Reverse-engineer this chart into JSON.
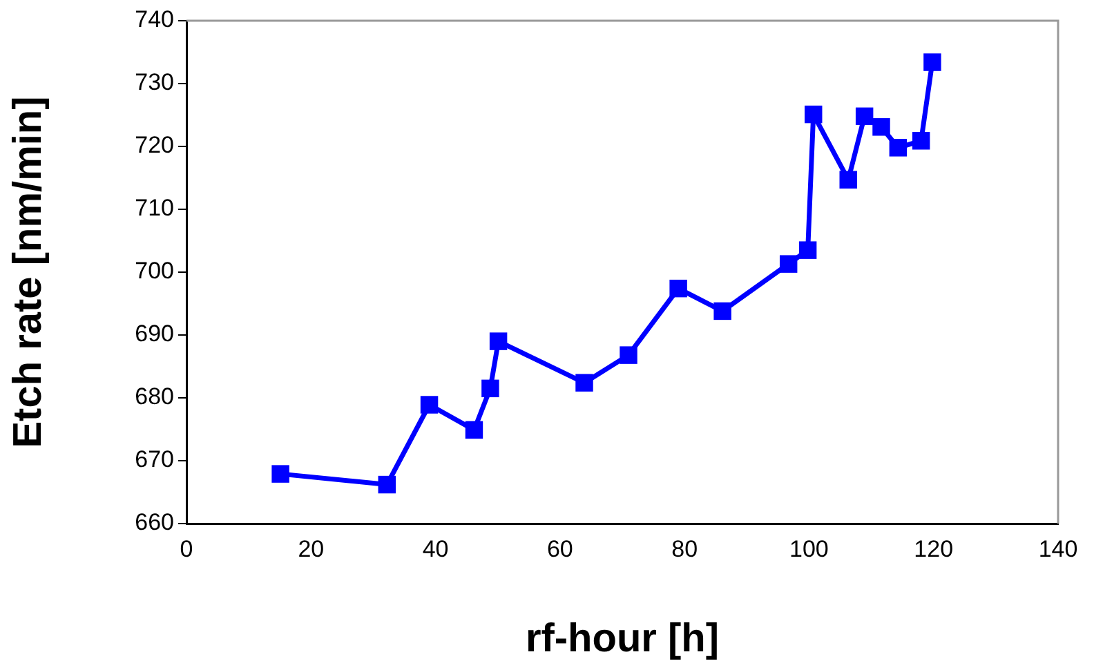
{
  "chart_data": {
    "type": "line",
    "xlabel": "rf-hour [h]",
    "ylabel": "Etch rate [nm/min]",
    "x": [
      15.1,
      32.2,
      39.0,
      46.2,
      48.8,
      50.1,
      63.9,
      71.0,
      79.0,
      86.1,
      96.7,
      99.8,
      100.7,
      106.3,
      108.9,
      111.6,
      114.3,
      118.0,
      119.8
    ],
    "series": [
      {
        "color": "#0000ff",
        "values": [
          667.9,
          666.2,
          678.9,
          674.9,
          681.5,
          689.0,
          682.4,
          686.8,
          697.4,
          693.8,
          701.3,
          703.5,
          725.1,
          714.7,
          724.8,
          723.1,
          719.8,
          720.9,
          733.4
        ]
      }
    ],
    "xlim": [
      0,
      140
    ],
    "xticks": [
      0,
      20,
      40,
      60,
      80,
      100,
      120,
      140
    ],
    "ylim": [
      660,
      740
    ],
    "yticks": [
      660,
      670,
      680,
      690,
      700,
      710,
      720,
      730,
      740
    ],
    "marker": "square",
    "line_style": "solid",
    "grid": false,
    "legend": false
  }
}
